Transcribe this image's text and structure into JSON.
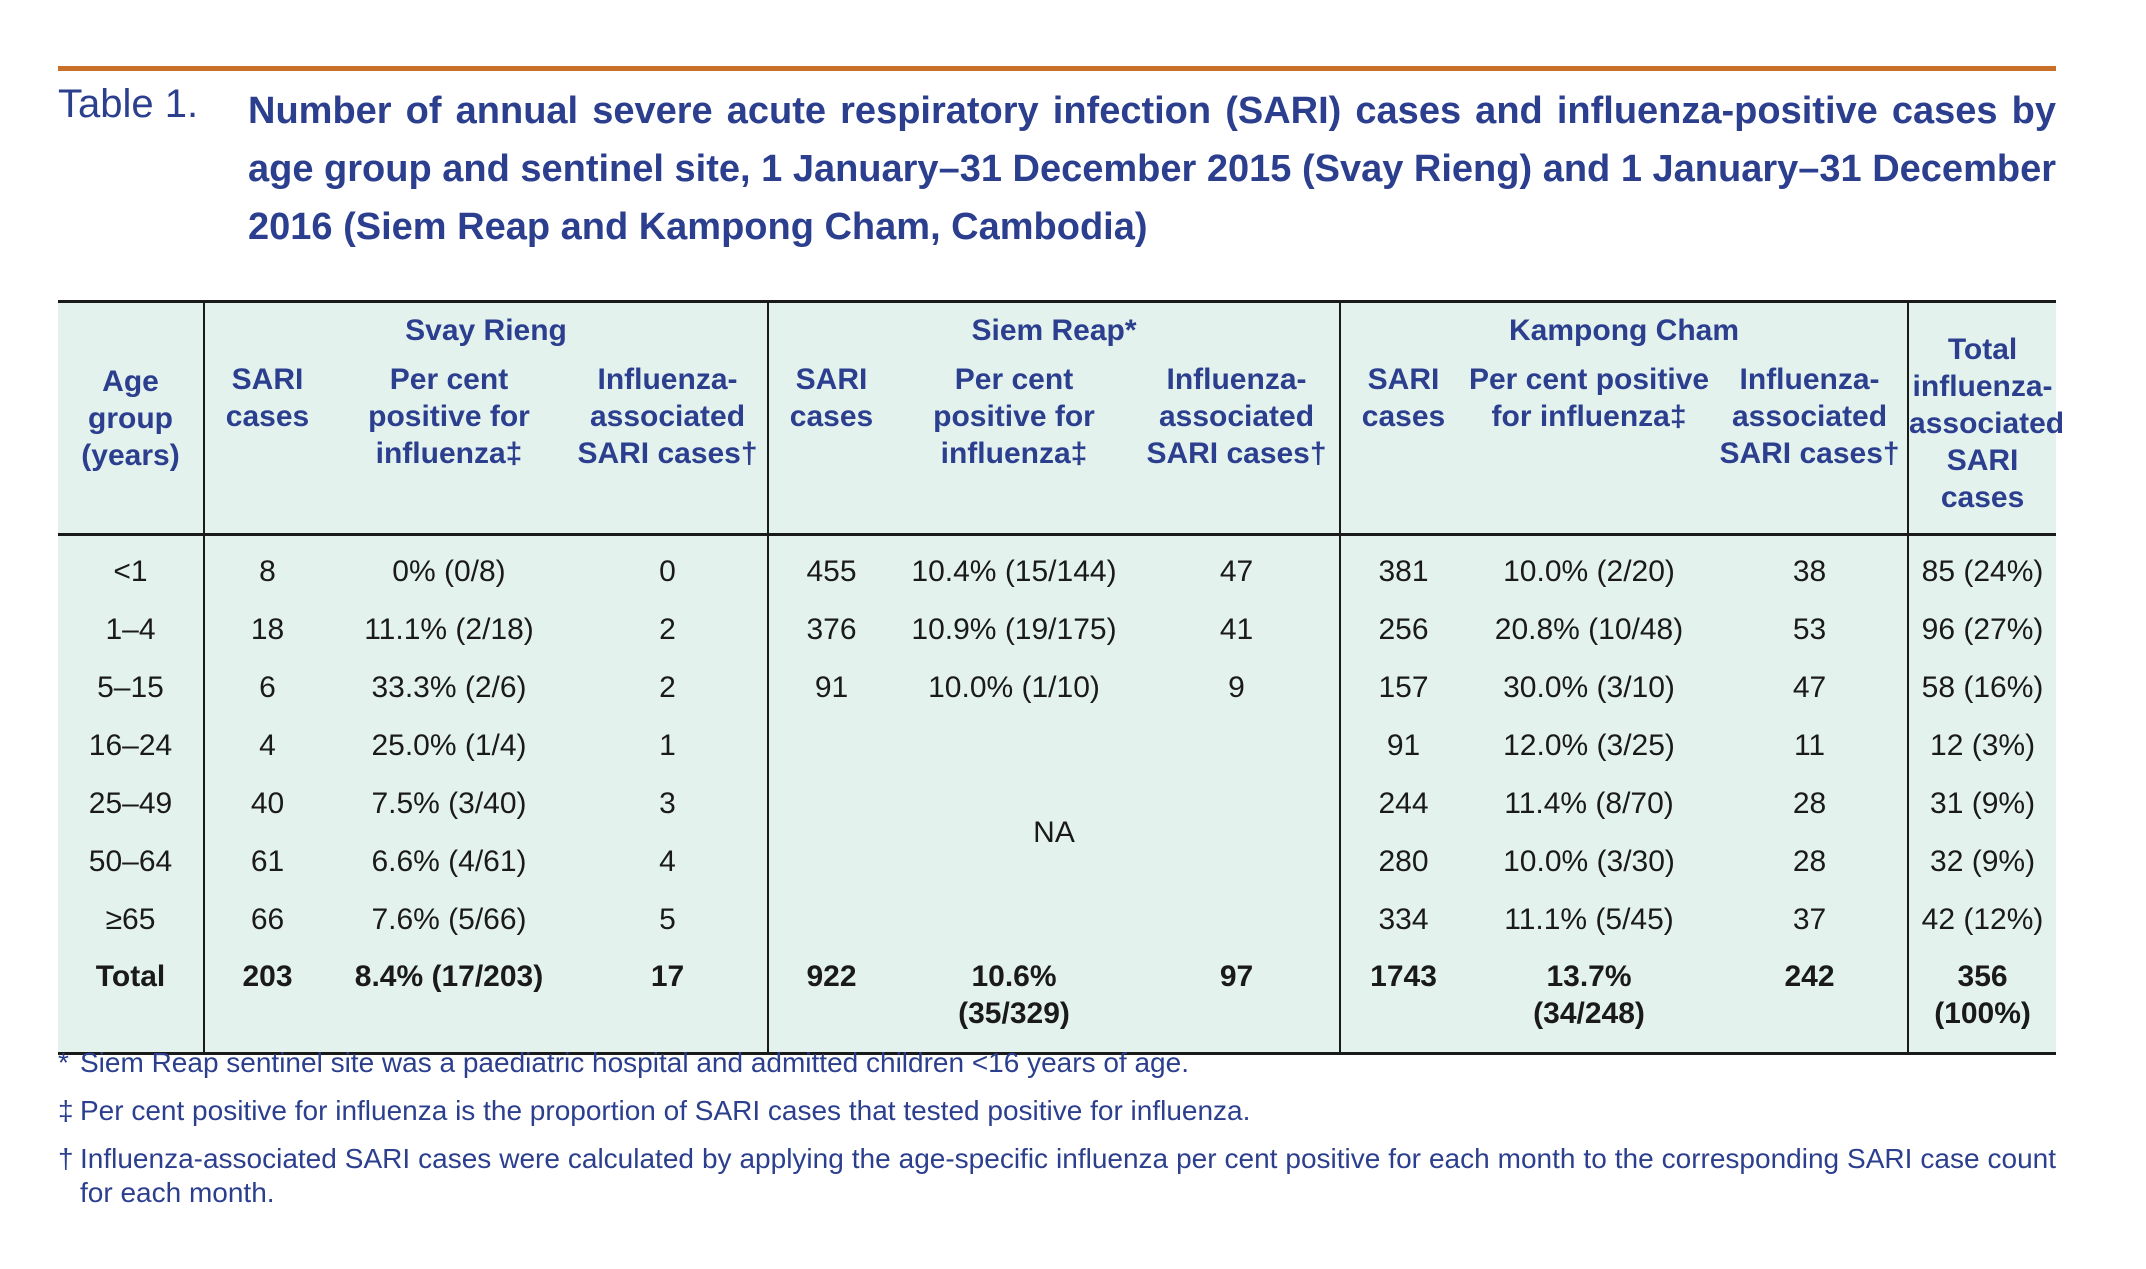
{
  "caption": {
    "label": "Table 1.",
    "title": "Number of annual severe acute respiratory infection (SARI) cases and influenza-positive cases by age group and sentinel site, 1 January–31 December 2015 (Svay Rieng) and 1 January–31 December 2016 (Siem Reap and Kampong Cham, Cambodia)"
  },
  "table": {
    "age_header": "Age group (years)",
    "total_header": "Total influenza-associated SARI cases",
    "sites": [
      "Svay Rieng",
      "Siem Reap*",
      "Kampong Cham"
    ],
    "sub_headers": [
      "SARI cases",
      "Per cent positive for influenza‡",
      "Influenza-associated SARI cases†"
    ],
    "rows": [
      {
        "age": "<1",
        "sr_sari": "8",
        "sr_pct": "0% (0/8)",
        "sr_inf": "0",
        "rp_sari": "455",
        "rp_pct": "10.4% (15/144)",
        "rp_inf": "47",
        "kc_sari": "381",
        "kc_pct": "10.0% (2/20)",
        "kc_inf": "38",
        "total": "85 (24%)"
      },
      {
        "age": "1–4",
        "sr_sari": "18",
        "sr_pct": "11.1% (2/18)",
        "sr_inf": "2",
        "rp_sari": "376",
        "rp_pct": "10.9% (19/175)",
        "rp_inf": "41",
        "kc_sari": "256",
        "kc_pct": "20.8% (10/48)",
        "kc_inf": "53",
        "total": "96 (27%)"
      },
      {
        "age": "5–15",
        "sr_sari": "6",
        "sr_pct": "33.3% (2/6)",
        "sr_inf": "2",
        "rp_sari": "91",
        "rp_pct": "10.0% (1/10)",
        "rp_inf": "9",
        "kc_sari": "157",
        "kc_pct": "30.0% (3/10)",
        "kc_inf": "47",
        "total": "58 (16%)"
      },
      {
        "age": "16–24",
        "sr_sari": "4",
        "sr_pct": "25.0% (1/4)",
        "sr_inf": "1",
        "kc_sari": "91",
        "kc_pct": "12.0% (3/25)",
        "kc_inf": "11",
        "total": "12 (3%)"
      },
      {
        "age": "25–49",
        "sr_sari": "40",
        "sr_pct": "7.5% (3/40)",
        "sr_inf": "3",
        "kc_sari": "244",
        "kc_pct": "11.4% (8/70)",
        "kc_inf": "28",
        "total": "31 (9%)"
      },
      {
        "age": "50–64",
        "sr_sari": "61",
        "sr_pct": "6.6% (4/61)",
        "sr_inf": "4",
        "kc_sari": "280",
        "kc_pct": "10.0% (3/30)",
        "kc_inf": "28",
        "total": "32 (9%)"
      },
      {
        "age": "≥65",
        "sr_sari": "66",
        "sr_pct": "7.6% (5/66)",
        "sr_inf": "5",
        "kc_sari": "334",
        "kc_pct": "11.1% (5/45)",
        "kc_inf": "37",
        "total": "42 (12%)"
      }
    ],
    "na_text": "NA",
    "total_row": {
      "age": "Total",
      "sr_sari": "203",
      "sr_pct": "8.4% (17/203)",
      "sr_inf": "17",
      "rp_sari": "922",
      "rp_pct_line1": "10.6%",
      "rp_pct_line2": "(35/329)",
      "rp_inf": "97",
      "kc_sari": "1743",
      "kc_pct_line1": "13.7%",
      "kc_pct_line2": "(34/248)",
      "kc_inf": "242",
      "total": "356 (100%)"
    }
  },
  "footnotes": [
    {
      "mark": "*",
      "text": "Siem Reap sentinel site was a paediatric hospital and admitted children <16 years of age."
    },
    {
      "mark": "‡",
      "text": "Per cent positive for influenza is the proportion of SARI cases that tested positive for influenza."
    },
    {
      "mark": "†",
      "text": "Influenza-associated SARI cases were calculated by applying the age-specific influenza per cent positive for each month to the corresponding SARI case count for each month."
    }
  ]
}
